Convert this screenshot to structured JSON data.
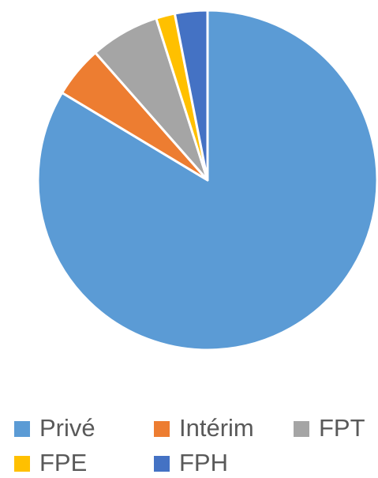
{
  "chart_data": {
    "type": "pie",
    "categories": [
      "Privé",
      "Intérim",
      "FPT",
      "FPE",
      "FPH"
    ],
    "values": [
      83.6,
      4.9,
      6.6,
      1.8,
      3.1
    ],
    "colors": [
      "#5b9bd5",
      "#ed7d31",
      "#a5a5a5",
      "#ffc000",
      "#4472c4"
    ],
    "legend": "bottom"
  }
}
